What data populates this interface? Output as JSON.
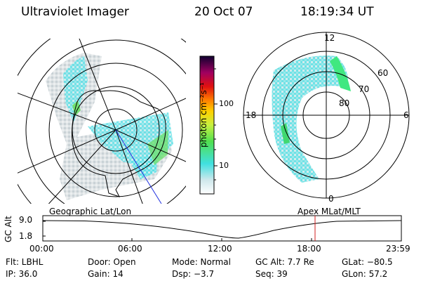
{
  "header": {
    "instrument": "Ultraviolet Imager",
    "date": "20 Oct 07",
    "time": "18:19:34 UT"
  },
  "colorbar": {
    "unit_label": "photon cm⁻²s⁻¹",
    "ticks": [
      "100",
      "10"
    ]
  },
  "polar_plot": {
    "mlt_labels": {
      "top": "12",
      "left": "18",
      "right": "6",
      "bottom": "0"
    },
    "lat_labels": [
      "60",
      "70",
      "80"
    ]
  },
  "timeline": {
    "left_title": "Geographic Lat/Lon",
    "right_title": "Apex  MLat/MLT",
    "y_axis_label": "GC Alt",
    "y_ticks": [
      "9.0",
      "1.8"
    ],
    "x_ticks": [
      "00:00",
      "06:00",
      "12:00",
      "18:00",
      "23:59"
    ],
    "marker_color": "#d02020"
  },
  "status": {
    "filter": "Flt: LBHL",
    "door": "Door: Open",
    "mode": "Mode: Normal",
    "gc_alt": "GC Alt: 7.7 Re",
    "glat": "GLat: −80.5",
    "ip": "IP: 36.0",
    "gain": "Gain: 14",
    "dsp": "Dsp:    −3.7",
    "seq": "Seq: 39",
    "glon": "GLon:  57.2"
  }
}
